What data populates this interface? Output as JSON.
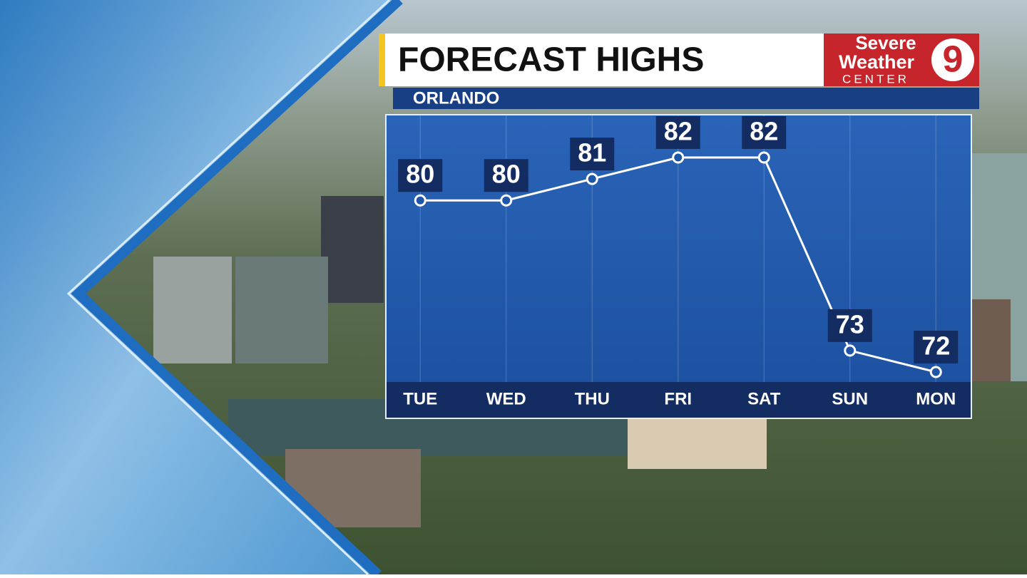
{
  "chart_data": {
    "type": "line",
    "title": "FORECAST HIGHS",
    "subtitle": "ORLANDO",
    "categories": [
      "TUE",
      "WED",
      "THU",
      "FRI",
      "SAT",
      "SUN",
      "MON"
    ],
    "values": [
      80,
      80,
      81,
      82,
      82,
      73,
      72
    ],
    "color": "#ffffff",
    "grid": true
  },
  "logo": {
    "line1": "Severe",
    "line2": "Weather",
    "line3": "CENTER",
    "channel": "9"
  }
}
